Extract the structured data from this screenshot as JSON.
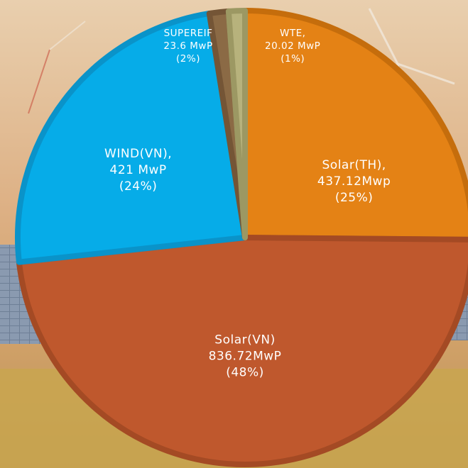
{
  "chart_data": {
    "type": "pie",
    "title": "",
    "slices": [
      {
        "name": "Solar(TH)",
        "value": 437.12,
        "unit": "Mwp",
        "label_lines": [
          "Solar(TH),",
          "437.12Mwp",
          "(25%)"
        ],
        "color": "#E48215",
        "edge": "#C56D0C"
      },
      {
        "name": "Solar(VN)",
        "value": 836.72,
        "unit": "MwP",
        "label_lines": [
          "Solar(VN)",
          "836.72MwP",
          "(48%)"
        ],
        "color": "#BF582D",
        "edge": "#A44A24"
      },
      {
        "name": "WIND(VN)",
        "value": 421,
        "unit": "MwP",
        "label_lines": [
          "WIND(VN),",
          "421 MwP",
          "(24%)"
        ],
        "color": "#06ACE8",
        "edge": "#0A93C9"
      },
      {
        "name": "SUPEREIF",
        "value": 23.6,
        "unit": "MwP",
        "label_lines": [
          "SUPEREIF",
          "23.6 MwP",
          "(2%)"
        ],
        "color": "#8B6A45",
        "edge": "#745536"
      },
      {
        "name": "WTE",
        "value": 20.02,
        "unit": "MwP",
        "label_lines": [
          "WTE,",
          "20.02 MwP",
          "(1%)"
        ],
        "color": "#B7B27C",
        "edge": "#9C9863"
      }
    ],
    "start_angle_deg": 0,
    "direction": "clockwise",
    "legend": "none",
    "background": "wind turbines and solar panels photo",
    "colors": {
      "sky_top": "#E6C7A4",
      "sky_mid": "#D8AA7C",
      "field": "#C7A15C"
    }
  }
}
